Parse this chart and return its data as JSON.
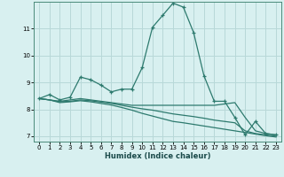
{
  "xlabel": "Humidex (Indice chaleur)",
  "x_values": [
    0,
    1,
    2,
    3,
    4,
    5,
    6,
    7,
    8,
    9,
    10,
    11,
    12,
    13,
    14,
    15,
    16,
    17,
    18,
    19,
    20,
    21,
    22,
    23
  ],
  "line_main": [
    8.4,
    8.55,
    8.35,
    8.45,
    9.2,
    9.1,
    8.9,
    8.65,
    8.75,
    8.75,
    9.55,
    11.05,
    11.5,
    11.95,
    11.8,
    10.85,
    9.25,
    8.3,
    8.3,
    7.7,
    7.05,
    7.55,
    7.1,
    7.05
  ],
  "line_upper": [
    8.4,
    8.35,
    8.3,
    8.35,
    8.4,
    8.35,
    8.3,
    8.25,
    8.2,
    8.15,
    8.15,
    8.15,
    8.15,
    8.15,
    8.15,
    8.15,
    8.15,
    8.15,
    8.2,
    8.25,
    7.7,
    7.2,
    7.1,
    7.05
  ],
  "line_mid": [
    8.4,
    8.35,
    8.28,
    8.3,
    8.35,
    8.32,
    8.27,
    8.22,
    8.15,
    8.08,
    8.02,
    7.97,
    7.9,
    7.83,
    7.78,
    7.73,
    7.67,
    7.6,
    7.55,
    7.5,
    7.2,
    7.1,
    7.05,
    7.0
  ],
  "line_lower": [
    8.4,
    8.35,
    8.25,
    8.28,
    8.32,
    8.28,
    8.22,
    8.16,
    8.07,
    7.97,
    7.85,
    7.75,
    7.65,
    7.55,
    7.5,
    7.44,
    7.38,
    7.32,
    7.26,
    7.2,
    7.14,
    7.08,
    7.02,
    6.97
  ],
  "line_color": "#2d7a6e",
  "bg_color": "#d8f0f0",
  "grid_color": "#b8d8d8",
  "ylim": [
    6.8,
    12.0
  ],
  "yticks": [
    7,
    8,
    9,
    10,
    11
  ],
  "marker": "+",
  "markersize": 3.5,
  "linewidth": 0.9
}
